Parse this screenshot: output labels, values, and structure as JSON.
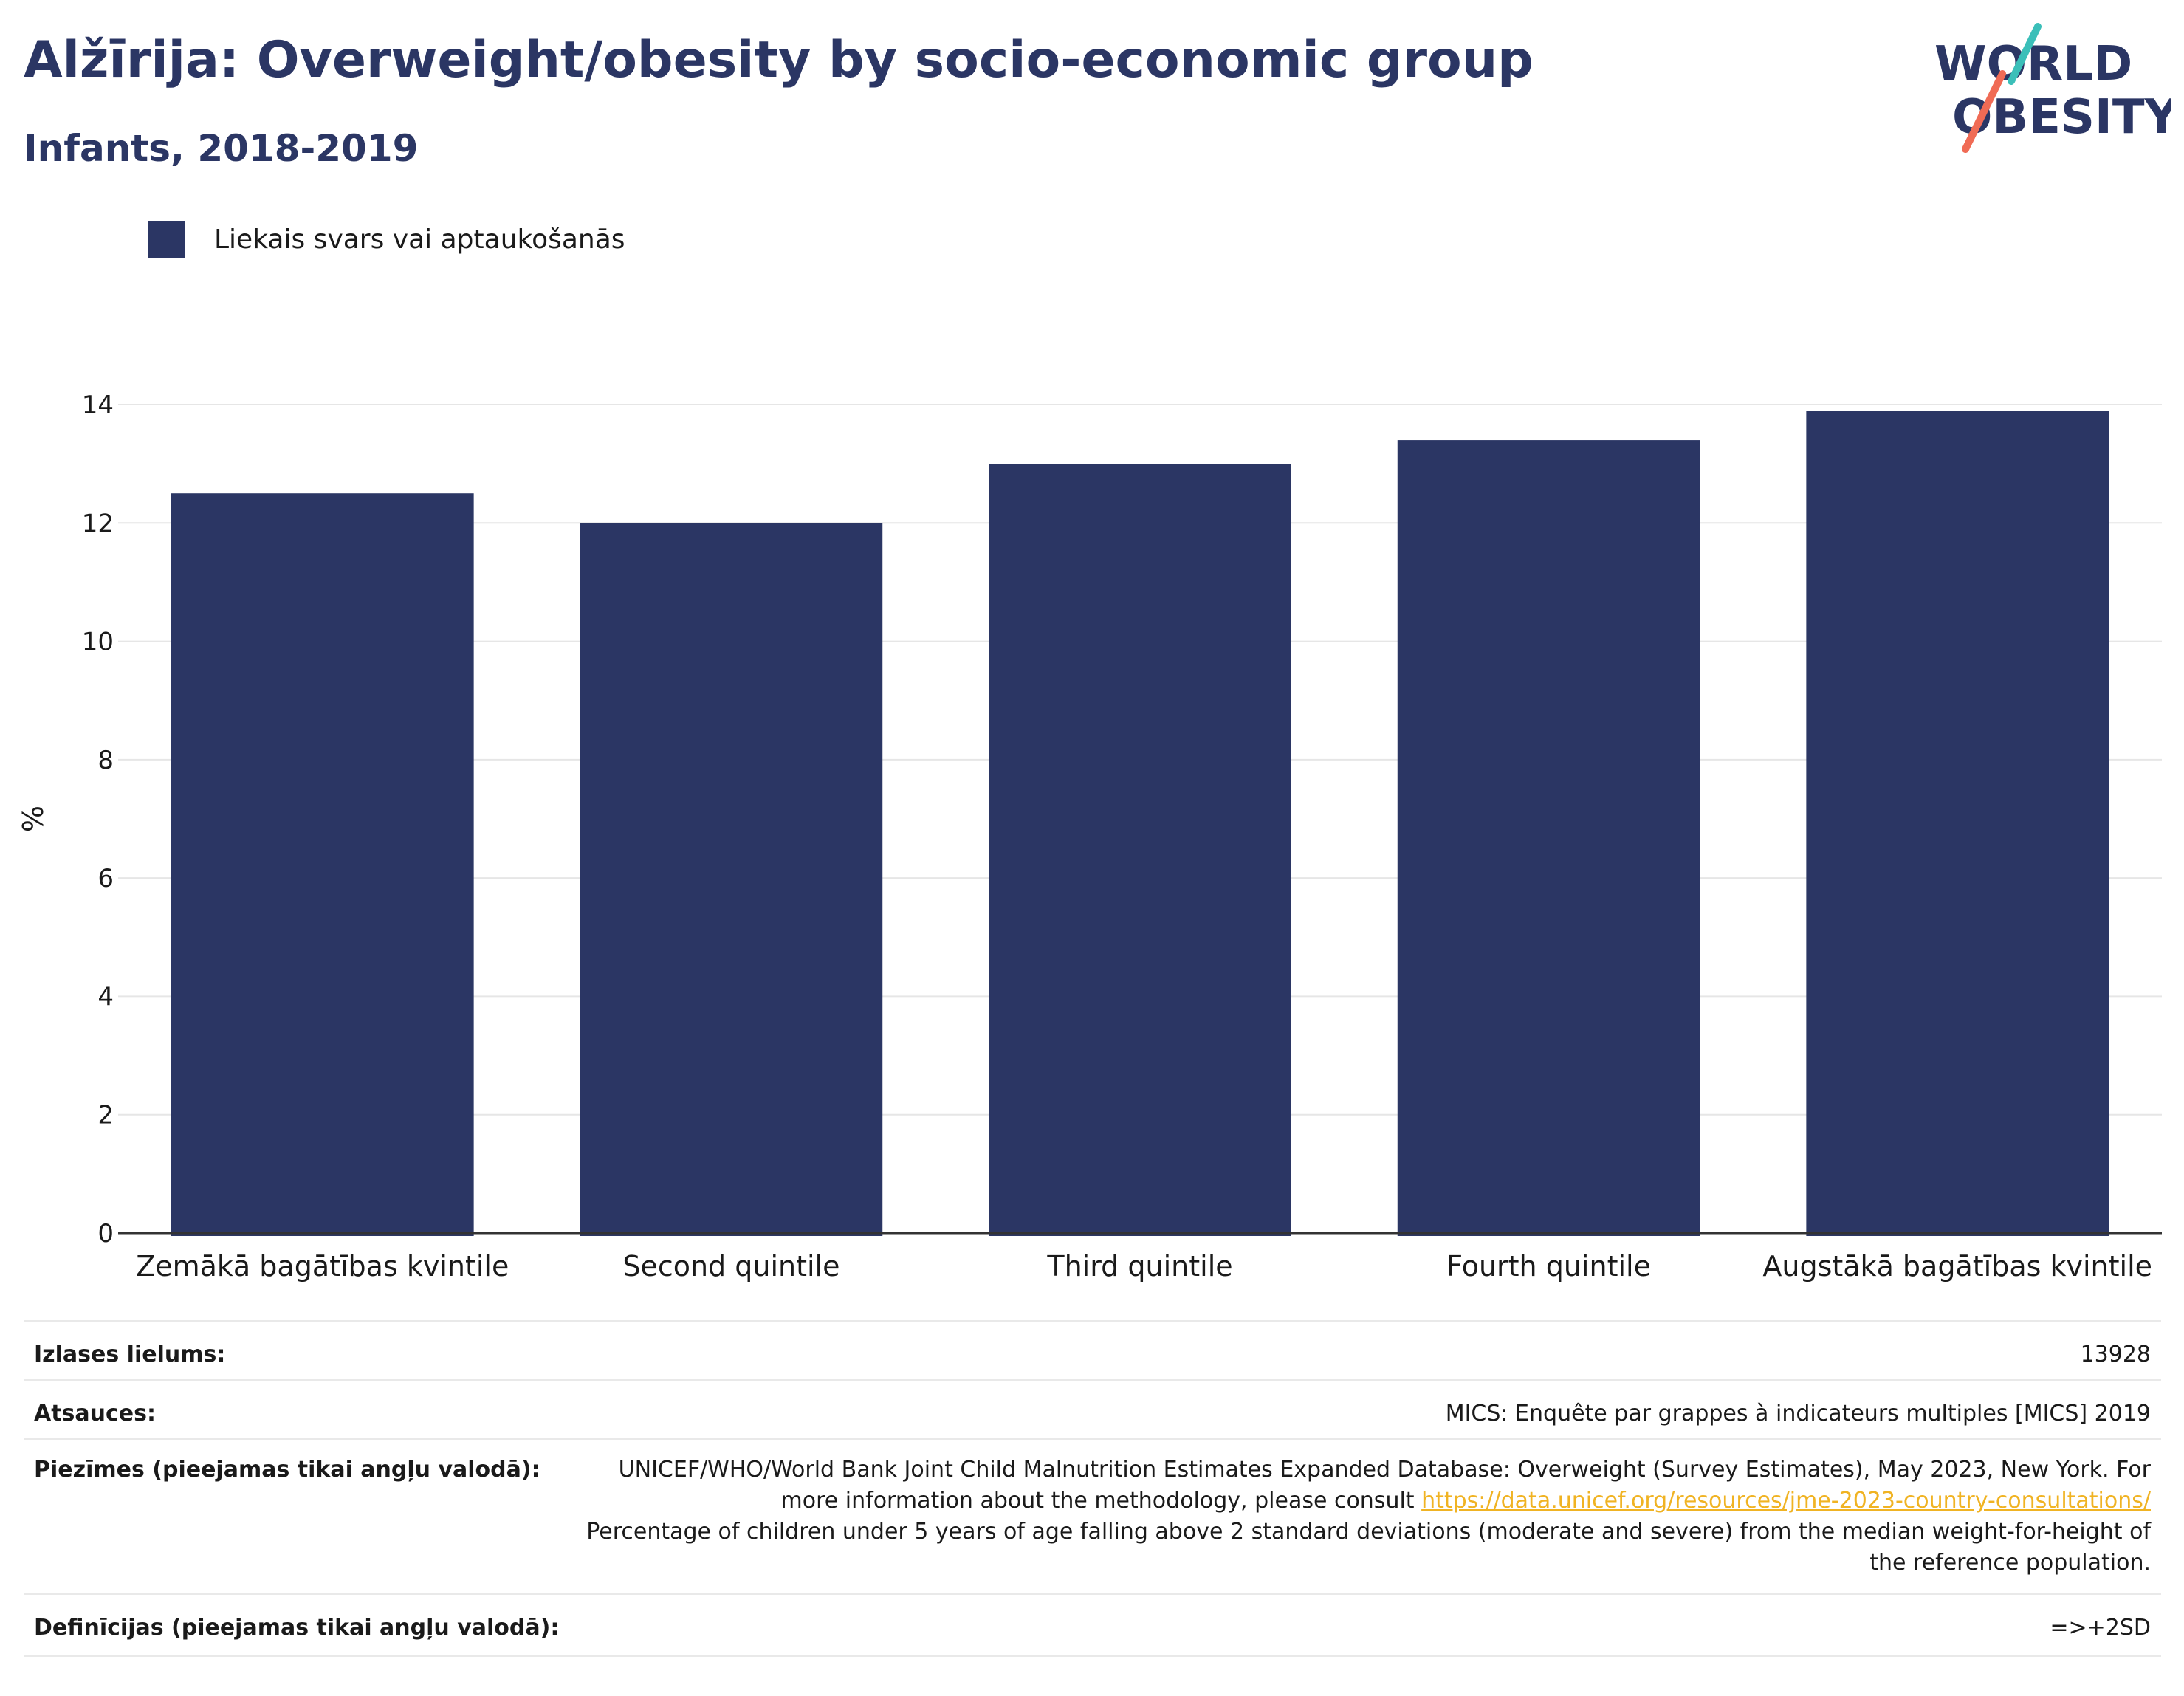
{
  "header": {
    "title": "Alžīrija: Overweight/obesity by socio-economic group",
    "subtitle": "Infants, 2018-2019"
  },
  "logo": {
    "line1": "WORLD",
    "line2": "OBESITY"
  },
  "legend": {
    "label": "Liekais svars vai aptaukošanās"
  },
  "colors": {
    "bar": "#2b3664",
    "title": "#2b3664",
    "link": "#f0b323",
    "logo_teal": "#3bbfb9",
    "logo_coral": "#f06b55"
  },
  "chart_data": {
    "type": "bar",
    "categories": [
      "Zemākā bagātības kvintile",
      "Second quintile",
      "Third quintile",
      "Fourth quintile",
      "Augstākā bagātības kvintile"
    ],
    "series": [
      {
        "name": "Liekais svars vai aptaukošanās",
        "values": [
          12.5,
          12.0,
          13.0,
          13.4,
          13.9
        ]
      }
    ],
    "ylabel": "%",
    "xlabel": "",
    "ylim": [
      0,
      14
    ],
    "yticks": [
      0,
      2,
      4,
      6,
      8,
      10,
      12,
      14
    ],
    "grid": true
  },
  "meta": {
    "sample_label": "Izlases lielums:",
    "sample_value": "13928",
    "sources_label": "Atsauces:",
    "sources_value": "MICS: Enquête par grappes à indicateurs multiples [MICS] 2019",
    "notes_label": "Piezīmes (pieejamas tikai angļu valodā):",
    "notes_text_1": "UNICEF/WHO/World Bank Joint Child Malnutrition Estimates Expanded Database: Overweight (Survey Estimates), May 2023, New York. For more information about the methodology, please consult ",
    "notes_link": "https://data.unicef.org/resources/jme-2023-country-consultations/",
    "notes_text_2": "Percentage of children under 5 years of age falling above 2 standard deviations (moderate and severe) from the median weight-for-height of the reference population.",
    "definitions_label": "Definīcijas (pieejamas tikai angļu valodā):",
    "definitions_value": "=>+2SD"
  }
}
